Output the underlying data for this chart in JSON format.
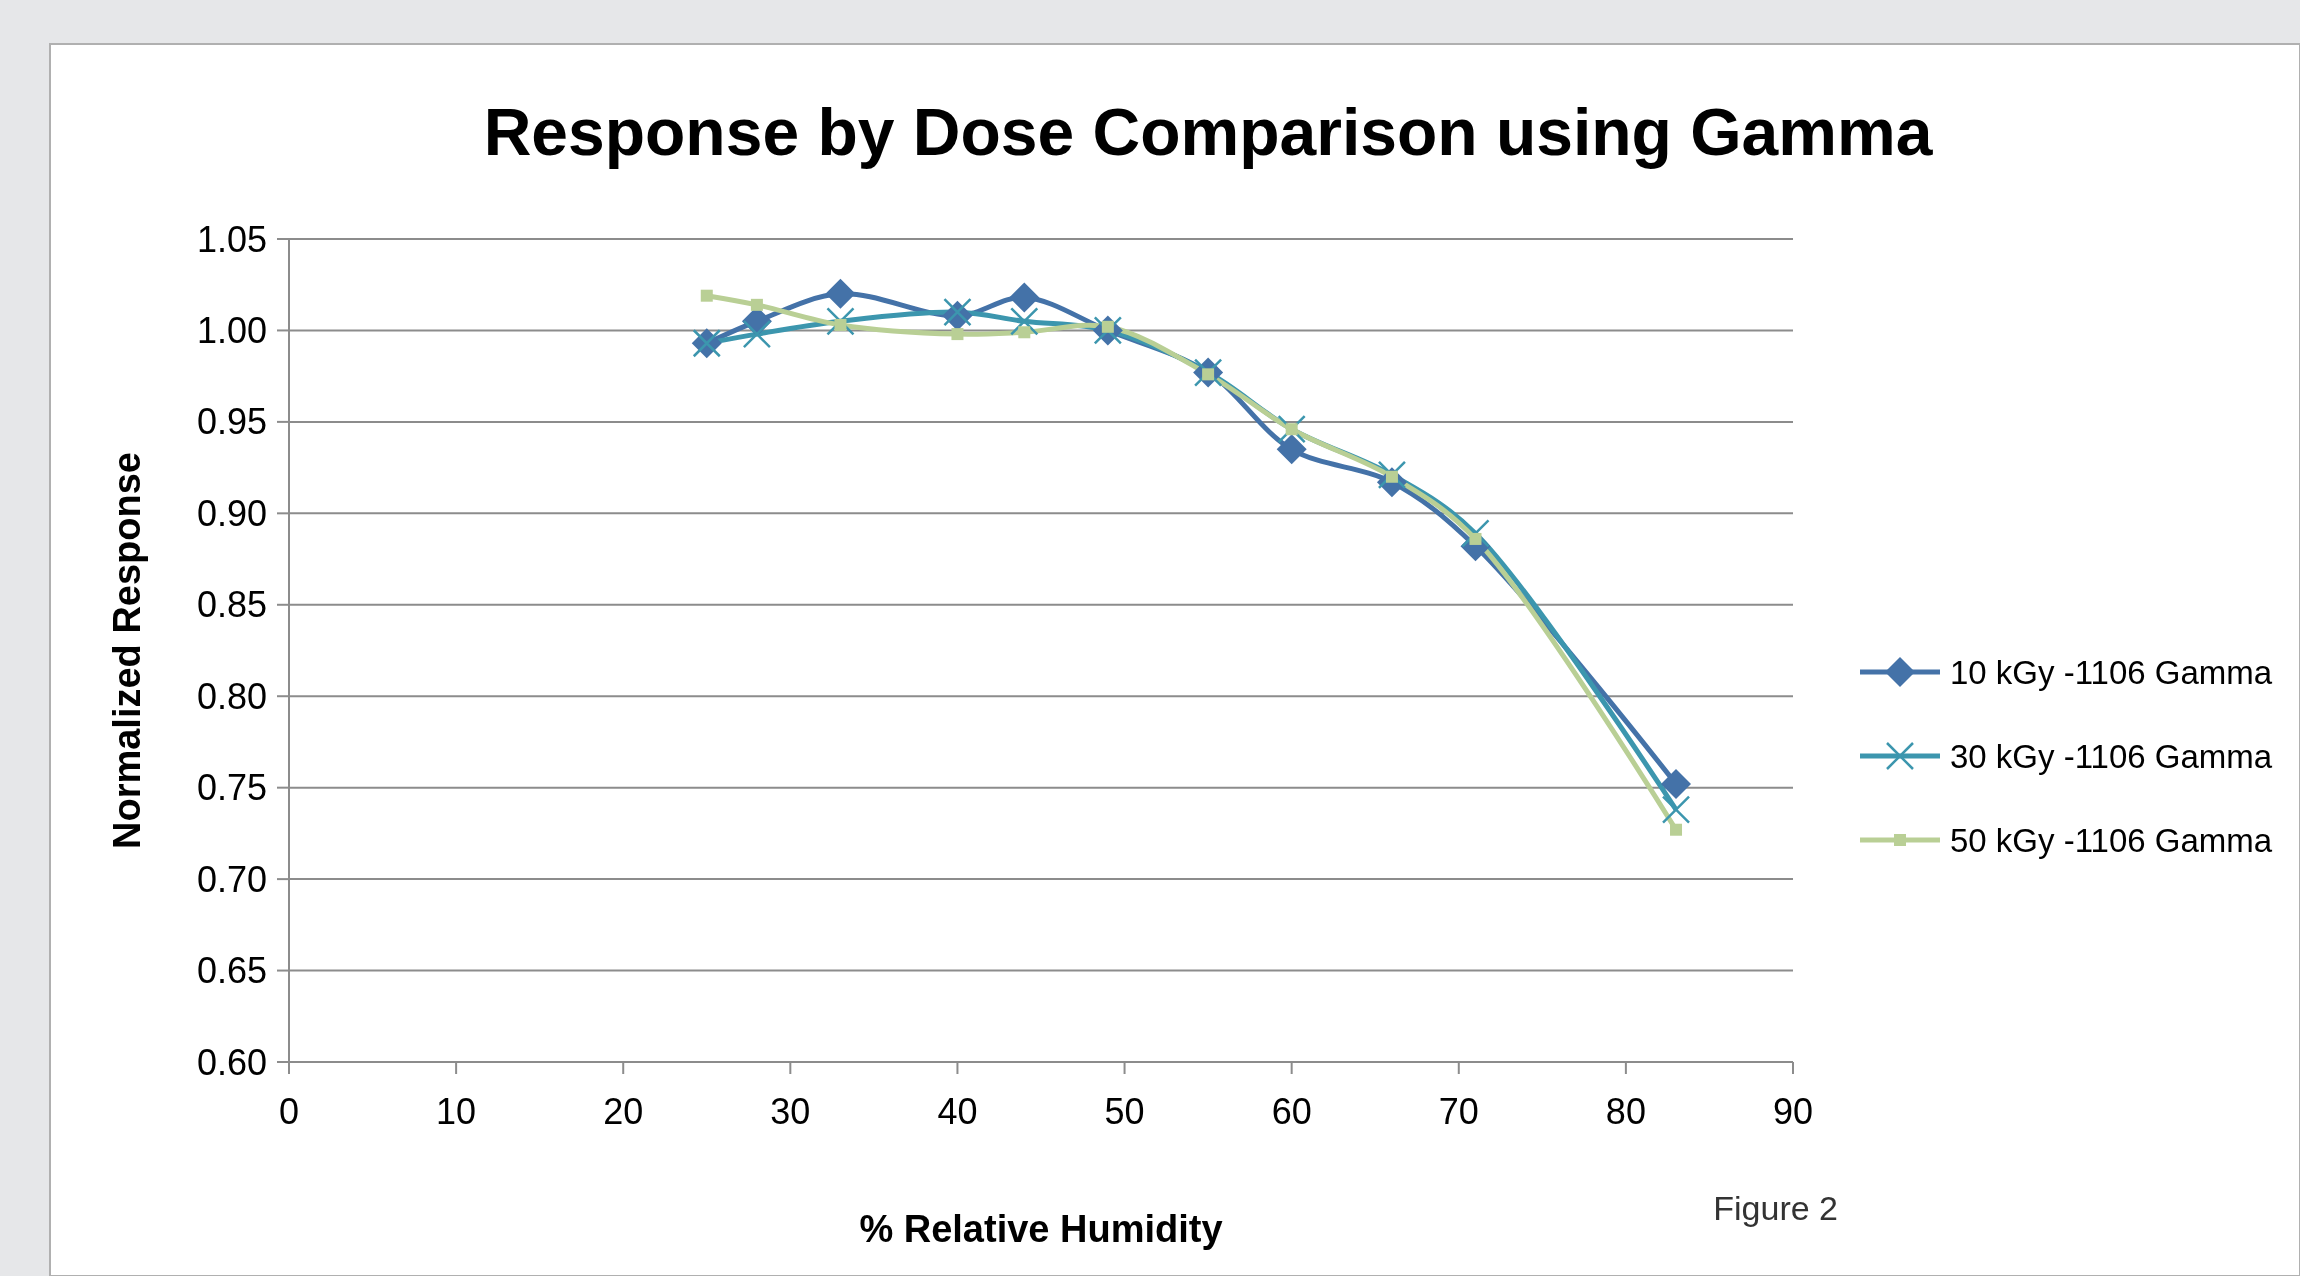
{
  "chart_data": {
    "type": "line",
    "title": "Response by Dose Comparison using Gamma",
    "xlabel": "% Relative Humidity",
    "ylabel": "Normalized Response",
    "annotations": [
      "Figure 2"
    ],
    "x": [
      25,
      28,
      33,
      40,
      44,
      49,
      55,
      60,
      66,
      71,
      83
    ],
    "series": [
      {
        "name": "10 kGy -1106 Gamma",
        "color": "#4472a8",
        "marker": "diamond",
        "values": [
          0.993,
          1.005,
          1.02,
          1.008,
          1.018,
          1.0,
          0.977,
          0.935,
          0.917,
          0.882,
          0.752
        ]
      },
      {
        "name": "30 kGy -1106 Gamma",
        "color": "#3c96ae",
        "marker": "cross",
        "values": [
          0.993,
          0.998,
          1.005,
          1.01,
          1.005,
          1.0,
          0.977,
          0.946,
          0.921,
          0.889,
          0.738
        ]
      },
      {
        "name": "50 kGy -1106 Gamma",
        "color": "#b9cf95",
        "marker": "square",
        "values": [
          1.019,
          1.014,
          1.003,
          0.998,
          0.999,
          1.002,
          0.976,
          0.946,
          0.92,
          0.886,
          0.727
        ]
      }
    ],
    "xlim": [
      0,
      90
    ],
    "xticks": [
      0,
      10,
      20,
      30,
      40,
      50,
      60,
      70,
      80,
      90
    ],
    "ylim": [
      0.6,
      1.05
    ],
    "yticks": [
      {
        "value": 0.6,
        "label": "0.60"
      },
      {
        "value": 0.65,
        "label": "0.65"
      },
      {
        "value": 0.7,
        "label": "0.70"
      },
      {
        "value": 0.75,
        "label": "0.75"
      },
      {
        "value": 0.8,
        "label": "0.80"
      },
      {
        "value": 0.85,
        "label": "0.85"
      },
      {
        "value": 0.9,
        "label": "0.90"
      },
      {
        "value": 0.95,
        "label": "0.95"
      },
      {
        "value": 1.0,
        "label": "1.00"
      },
      {
        "value": 1.05,
        "label": "1.05"
      }
    ],
    "grid": "y",
    "legend": "right",
    "line_style": "solid"
  }
}
